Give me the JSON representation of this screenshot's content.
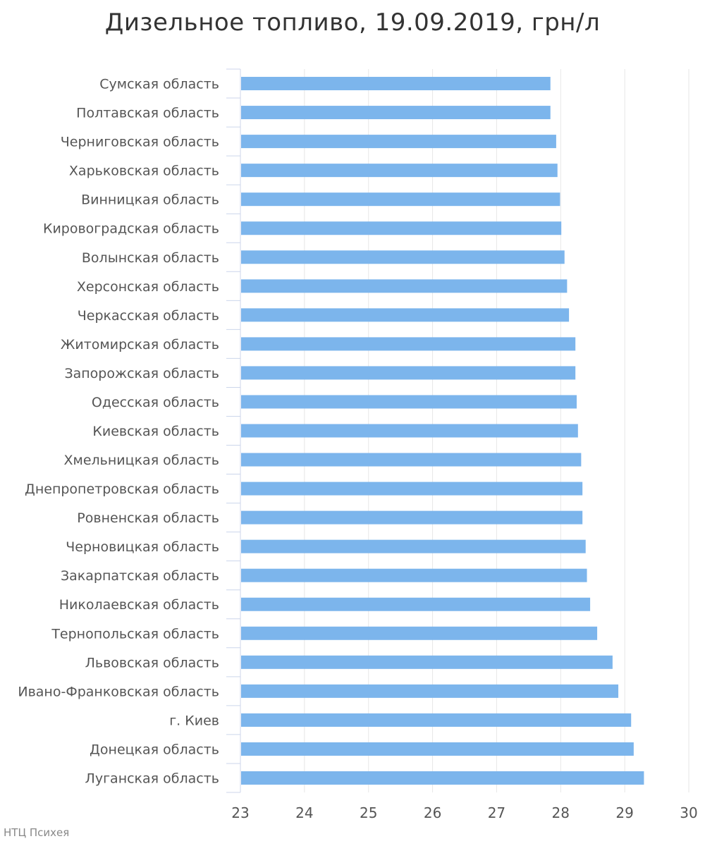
{
  "chart_data": {
    "type": "bar",
    "orientation": "horizontal",
    "title": "Дизельное топливо, 19.09.2019, грн/л",
    "xlabel": "",
    "ylabel": "",
    "xlim": [
      23,
      30
    ],
    "xticks": [
      "23",
      "24",
      "25",
      "26",
      "27",
      "28",
      "29",
      "30"
    ],
    "grid": true,
    "bar_color": "#7cb5ec",
    "categories": [
      "Сумская область",
      "Полтавская область",
      "Черниговская область",
      "Харьковская область",
      "Винницкая область",
      "Кировоградская область",
      "Волынская область",
      "Херсонская область",
      "Черкасская область",
      "Житомирская область",
      "Запорожская область",
      "Одесская область",
      "Киевская область",
      "Хмельницкая область",
      "Днепропетровская область",
      "Ровненская область",
      "Черновицкая область",
      "Закарпатская область",
      "Николаевская область",
      "Тернопольская область",
      "Львовская область",
      "Ивано-Франковская область",
      "г. Киев",
      "Донецкая область",
      "Луганская область"
    ],
    "values": [
      27.84,
      27.84,
      27.93,
      27.95,
      27.99,
      28.01,
      28.06,
      28.1,
      28.13,
      28.23,
      28.23,
      28.25,
      28.27,
      28.32,
      28.34,
      28.34,
      28.39,
      28.41,
      28.46,
      28.57,
      28.81,
      28.9,
      29.1,
      29.14,
      29.3
    ]
  },
  "credit": "НТЦ Психея"
}
